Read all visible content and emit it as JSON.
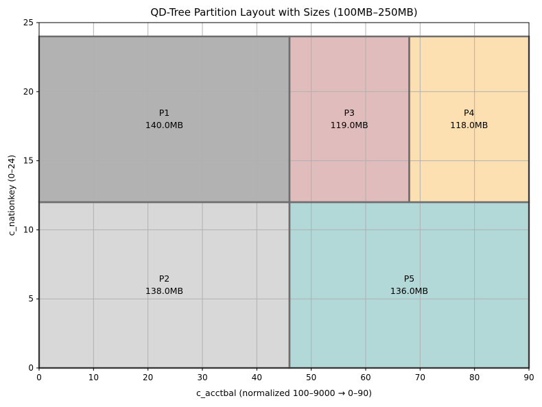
{
  "chart_data": {
    "type": "partition",
    "title": "QD-Tree Partition Layout with Sizes (100MB–250MB)",
    "xlabel": "c_acctbal (normalized 100–9000 → 0–90)",
    "ylabel": "c_nationkey (0–24)",
    "xlim": [
      0,
      90
    ],
    "ylim": [
      0,
      25
    ],
    "xticks": [
      0,
      10,
      20,
      30,
      40,
      50,
      60,
      70,
      80,
      90
    ],
    "yticks": [
      0,
      5,
      10,
      15,
      20,
      25
    ],
    "grid": true,
    "partitions": [
      {
        "name": "P1",
        "size_label": "140.0MB",
        "x0": 0,
        "x1": 46,
        "y0": 12,
        "y1": 24,
        "color": "#b2b2b2"
      },
      {
        "name": "P2",
        "size_label": "138.0MB",
        "x0": 0,
        "x1": 46,
        "y0": 0,
        "y1": 12,
        "color": "#d8d8d8"
      },
      {
        "name": "P3",
        "size_label": "119.0MB",
        "x0": 46,
        "x1": 68,
        "y0": 12,
        "y1": 24,
        "color": "#e0bcbc"
      },
      {
        "name": "P4",
        "size_label": "118.0MB",
        "x0": 68,
        "x1": 90,
        "y0": 12,
        "y1": 24,
        "color": "#fde0b2"
      },
      {
        "name": "P5",
        "size_label": "136.0MB",
        "x0": 46,
        "x1": 90,
        "y0": 0,
        "y1": 12,
        "color": "#b2d8d8"
      }
    ]
  }
}
